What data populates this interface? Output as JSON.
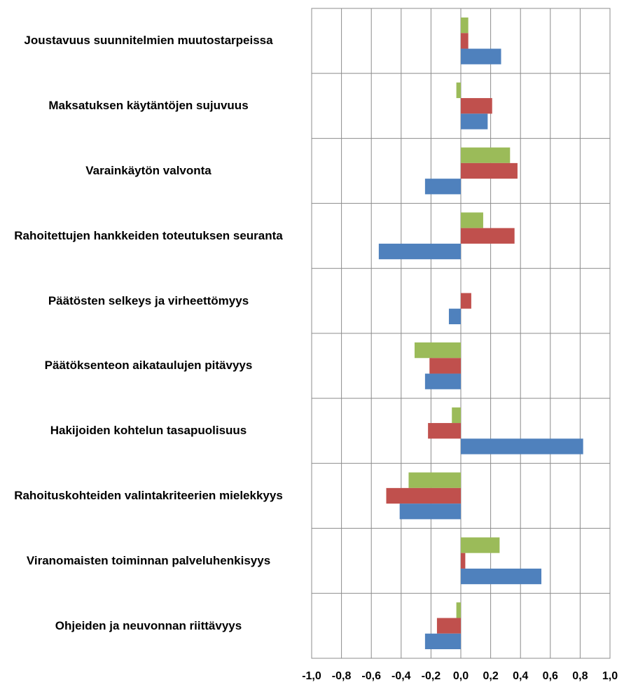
{
  "chart_data": {
    "type": "bar",
    "orientation": "horizontal",
    "categories": [
      "Joustavuus suunnitelmien muutostarpeissa",
      "Maksatuksen käytäntöjen sujuvuus",
      "Varainkäytön valvonta",
      "Rahoitettujen hankkeiden toteutuksen seuranta",
      "Päätösten selkeys ja virheettömyys",
      "Päätöksenteon aikataulujen pitävyys",
      "Hakijoiden kohtelun tasapuolisuus",
      "Rahoituskohteiden valintakriteerien mielekkyys",
      "Viranomaisten toiminnan palveluhenkisyys",
      "Ohjeiden ja neuvonnan riittävyys"
    ],
    "series": [
      {
        "color": "#9bbb59",
        "values": [
          0.05,
          -0.03,
          0.33,
          0.15,
          0,
          -0.31,
          -0.06,
          -0.35,
          0.26,
          -0.03
        ]
      },
      {
        "color": "#c0504d",
        "values": [
          0.05,
          0.21,
          0.38,
          0.36,
          0.07,
          -0.21,
          -0.22,
          -0.5,
          0.03,
          -0.16
        ]
      },
      {
        "color": "#4f81bd",
        "values": [
          0.27,
          0.18,
          -0.24,
          -0.55,
          -0.08,
          -0.24,
          0.82,
          -0.41,
          0.54,
          -0.24
        ]
      }
    ],
    "xlim": [
      -1,
      1
    ],
    "xticks": [
      {
        "value": -1,
        "label": "-1,0"
      },
      {
        "value": -0.8,
        "label": "-0,8"
      },
      {
        "value": -0.6,
        "label": "-0,6"
      },
      {
        "value": -0.4,
        "label": "-0,4"
      },
      {
        "value": -0.2,
        "label": "-0,2"
      },
      {
        "value": 0,
        "label": "0,0"
      },
      {
        "value": 0.2,
        "label": "0,2"
      },
      {
        "value": 0.4,
        "label": "0,4"
      },
      {
        "value": 0.6,
        "label": "0,6"
      },
      {
        "value": 0.8,
        "label": "0,8"
      },
      {
        "value": 1,
        "label": "1,0"
      }
    ],
    "grid": true
  }
}
